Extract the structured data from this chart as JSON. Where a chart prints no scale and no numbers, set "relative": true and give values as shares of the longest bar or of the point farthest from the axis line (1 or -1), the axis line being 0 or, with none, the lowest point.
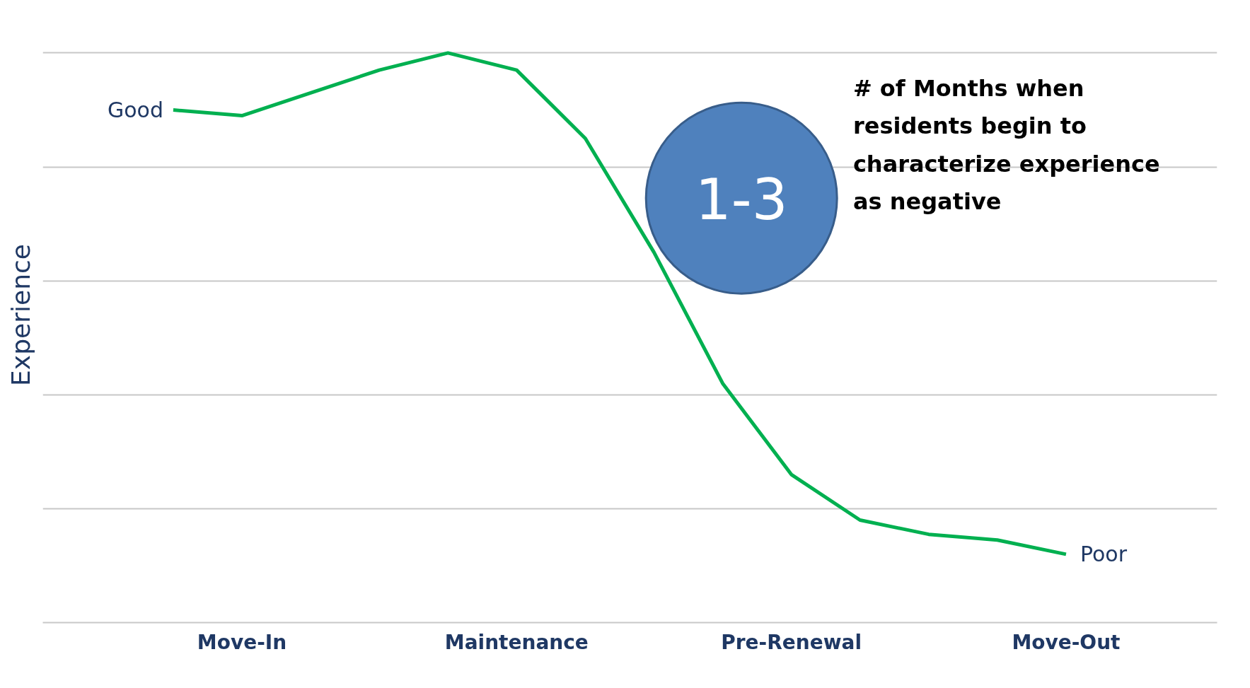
{
  "chart_data": {
    "type": "line",
    "relative": true,
    "ylabel": "Experience",
    "categories": [
      null,
      "Move-In",
      null,
      null,
      null,
      "Maintenance",
      null,
      null,
      null,
      "Pre-Renewal",
      null,
      null,
      null,
      "Move-Out"
    ],
    "series": [
      {
        "color": "#00b050",
        "values": [
          0.9,
          0.89,
          0.93,
          0.97,
          1,
          0.97,
          0.85,
          0.65,
          0.42,
          0.26,
          0.18,
          0.155,
          0.145,
          0.12
        ]
      }
    ],
    "annotations": [
      "Good",
      "Poor",
      "1-3",
      "# of Months when residents begin to characterize experience as negative"
    ],
    "grid": "y",
    "line_style": "solid"
  }
}
